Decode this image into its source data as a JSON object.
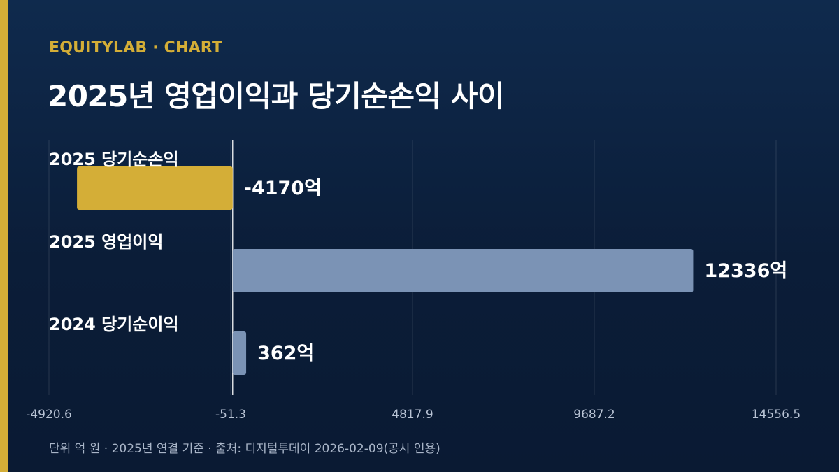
{
  "header": {
    "kicker": "EQUITYLAB · CHART",
    "title": "2025년 영업이익과 당기순손익 사이"
  },
  "footer": {
    "note": "단위 억 원 · 2025년 연결 기준 · 출처: 디지털투데이 2026-02-09(공시 인용)"
  },
  "colors": {
    "accent": "#d4ae37",
    "bar_default": "#7b93b5",
    "bar_negative": "#d4ae37"
  },
  "chart_data": {
    "type": "bar",
    "orientation": "horizontal",
    "categories": [
      "2025 당기순손익",
      "2025 영업이익",
      "2024 당기순이익"
    ],
    "values": [
      -4170,
      12336,
      362
    ],
    "value_labels": [
      "-4170억",
      "12336억",
      "362억"
    ],
    "unit": "억",
    "xlim": [
      -4920.6,
      14556.5
    ],
    "x_ticks": [
      -4920.6,
      -51.3,
      4817.9,
      9687.2,
      14556.5
    ],
    "x_tick_labels": [
      "-4920.6",
      "-51.3",
      "4817.9",
      "9687.2",
      "14556.5"
    ],
    "grid": true
  }
}
